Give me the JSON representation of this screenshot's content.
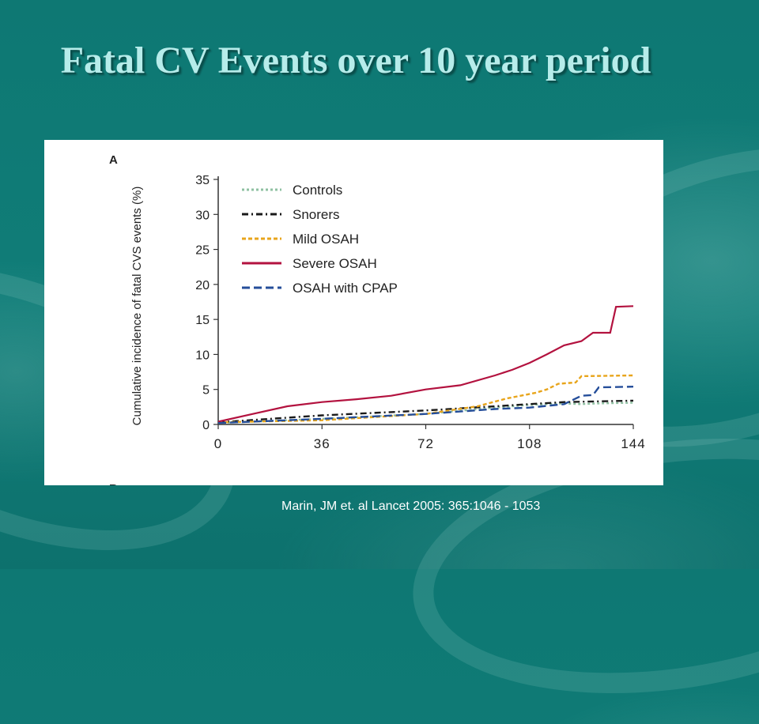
{
  "slide": {
    "title": "Fatal CV Events over 10 year period",
    "citation": "Marin, JM et. al Lancet 2005: 365:1046 - 1053"
  },
  "chart_data": {
    "type": "line",
    "panel_label": "A",
    "next_panel_label_partial": "B",
    "xlabel": "",
    "ylabel": "Cumulative incidence of fatal CVS events (%)",
    "xlim": [
      0,
      144
    ],
    "ylim": [
      0,
      35
    ],
    "x_ticks": [
      "0",
      "36",
      "72",
      "108",
      "144"
    ],
    "y_ticks": [
      "0",
      "5",
      "10",
      "15",
      "20",
      "25",
      "30",
      "35"
    ],
    "grid": false,
    "legend_position": "top-left",
    "series": [
      {
        "name": "Controls",
        "color": "#8fc1a2",
        "dash": "dots",
        "points": [
          [
            0,
            0.2
          ],
          [
            36,
            0.8
          ],
          [
            72,
            1.5
          ],
          [
            96,
            2.4
          ],
          [
            108,
            2.8
          ],
          [
            120,
            3.0
          ],
          [
            126,
            2.9
          ],
          [
            132,
            3.0
          ],
          [
            144,
            3.1
          ]
        ]
      },
      {
        "name": "Snorers",
        "color": "#1a1a1a",
        "dash": "dashdot",
        "points": [
          [
            0,
            0.3
          ],
          [
            36,
            1.3
          ],
          [
            72,
            2.0
          ],
          [
            96,
            2.6
          ],
          [
            108,
            2.9
          ],
          [
            120,
            3.2
          ],
          [
            144,
            3.4
          ]
        ]
      },
      {
        "name": "Mild OSAH",
        "color": "#e8a51c",
        "dash": "dash",
        "points": [
          [
            0,
            0.3
          ],
          [
            36,
            0.6
          ],
          [
            72,
            1.5
          ],
          [
            90,
            2.6
          ],
          [
            100,
            3.7
          ],
          [
            110,
            4.5
          ],
          [
            114,
            5.0
          ],
          [
            118,
            5.8
          ],
          [
            124,
            6.0
          ],
          [
            126,
            6.9
          ],
          [
            144,
            7.0
          ]
        ]
      },
      {
        "name": "Severe OSAH",
        "color": "#b3123f",
        "dash": "solid",
        "points": [
          [
            0,
            0.4
          ],
          [
            12,
            1.5
          ],
          [
            24,
            2.6
          ],
          [
            36,
            3.2
          ],
          [
            48,
            3.6
          ],
          [
            60,
            4.1
          ],
          [
            72,
            5.0
          ],
          [
            84,
            5.6
          ],
          [
            96,
            7.0
          ],
          [
            102,
            7.8
          ],
          [
            108,
            8.8
          ],
          [
            114,
            10.0
          ],
          [
            120,
            11.3
          ],
          [
            126,
            11.9
          ],
          [
            130,
            13.1
          ],
          [
            136,
            13.1
          ],
          [
            138,
            16.8
          ],
          [
            144,
            16.9
          ]
        ]
      },
      {
        "name": "OSAH with CPAP",
        "color": "#254e9a",
        "dash": "longdash",
        "points": [
          [
            0,
            0.2
          ],
          [
            36,
            0.8
          ],
          [
            72,
            1.5
          ],
          [
            96,
            2.2
          ],
          [
            108,
            2.4
          ],
          [
            120,
            2.9
          ],
          [
            126,
            4.1
          ],
          [
            130,
            4.2
          ],
          [
            132,
            5.3
          ],
          [
            144,
            5.4
          ]
        ]
      }
    ]
  }
}
